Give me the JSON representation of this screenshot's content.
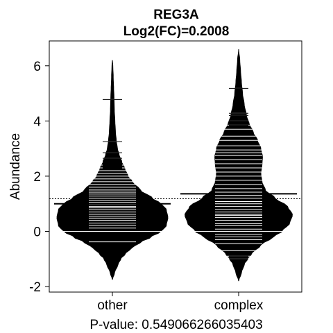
{
  "chart_data": {
    "type": "beanplot",
    "title": "REG3A",
    "subtitle": "Log2(FC)=0.2008",
    "xlabel": "P-value: 0.549066266035403",
    "ylabel": "Abundance",
    "categories": [
      "other",
      "complex"
    ],
    "ylim": [
      -2.2,
      6.9
    ],
    "yticks": [
      -2,
      0,
      2,
      4,
      6
    ],
    "overall_mean": 1.18,
    "grid": false,
    "legend": "none",
    "series": [
      {
        "name": "other",
        "mean": 1.0,
        "min": -1.75,
        "max": 6.2,
        "density": [
          [
            -1.75,
            0.0
          ],
          [
            -1.5,
            0.04
          ],
          [
            -1.2,
            0.1
          ],
          [
            -1.0,
            0.15
          ],
          [
            -0.8,
            0.24
          ],
          [
            -0.6,
            0.35
          ],
          [
            -0.4,
            0.5
          ],
          [
            -0.2,
            0.7
          ],
          [
            0.0,
            0.88
          ],
          [
            0.2,
            0.97
          ],
          [
            0.5,
            1.0
          ],
          [
            0.8,
            0.97
          ],
          [
            1.0,
            0.88
          ],
          [
            1.2,
            0.72
          ],
          [
            1.5,
            0.5
          ],
          [
            1.8,
            0.36
          ],
          [
            2.0,
            0.28
          ],
          [
            2.3,
            0.22
          ],
          [
            2.5,
            0.17
          ],
          [
            2.8,
            0.12
          ],
          [
            3.0,
            0.09
          ],
          [
            3.3,
            0.07
          ],
          [
            3.6,
            0.055
          ],
          [
            4.0,
            0.045
          ],
          [
            4.4,
            0.035
          ],
          [
            4.8,
            0.03
          ],
          [
            5.2,
            0.022
          ],
          [
            5.6,
            0.015
          ],
          [
            6.0,
            0.008
          ],
          [
            6.2,
            0.0
          ]
        ],
        "observations": [
          -0.38,
          0.0,
          0.0,
          0.0,
          0.0,
          0.12,
          0.22,
          0.3,
          0.4,
          0.48,
          0.55,
          0.62,
          0.7,
          0.78,
          0.85,
          0.9,
          0.98,
          1.05,
          1.12,
          1.2,
          1.28,
          1.35,
          1.42,
          1.5,
          1.6,
          1.7,
          1.8,
          1.9,
          2.0,
          2.1,
          2.2,
          2.3,
          2.4,
          2.55,
          2.65,
          2.85,
          3.25,
          4.78
        ]
      },
      {
        "name": "complex",
        "mean": 1.36,
        "min": -1.8,
        "max": 6.6,
        "density": [
          [
            -1.8,
            0.0
          ],
          [
            -1.5,
            0.05
          ],
          [
            -1.2,
            0.1
          ],
          [
            -1.0,
            0.16
          ],
          [
            -0.8,
            0.24
          ],
          [
            -0.5,
            0.4
          ],
          [
            -0.2,
            0.62
          ],
          [
            0.0,
            0.78
          ],
          [
            0.3,
            0.92
          ],
          [
            0.6,
            0.97
          ],
          [
            0.9,
            0.88
          ],
          [
            1.2,
            0.66
          ],
          [
            1.5,
            0.48
          ],
          [
            1.8,
            0.42
          ],
          [
            2.1,
            0.4
          ],
          [
            2.4,
            0.42
          ],
          [
            2.7,
            0.43
          ],
          [
            3.0,
            0.4
          ],
          [
            3.3,
            0.34
          ],
          [
            3.6,
            0.26
          ],
          [
            3.9,
            0.19
          ],
          [
            4.2,
            0.14
          ],
          [
            4.6,
            0.1
          ],
          [
            5.0,
            0.07
          ],
          [
            5.4,
            0.05
          ],
          [
            5.8,
            0.035
          ],
          [
            6.2,
            0.02
          ],
          [
            6.6,
            0.0
          ]
        ],
        "observations": [
          -1.0,
          -0.9,
          -0.7,
          -0.45,
          -0.3,
          -0.2,
          -0.1,
          0.0,
          0.0,
          0.0,
          0.0,
          0.08,
          0.2,
          0.28,
          0.4,
          0.5,
          0.58,
          0.62,
          0.7,
          0.8,
          0.9,
          1.0,
          1.08,
          1.2,
          1.3,
          1.42,
          1.55,
          1.7,
          1.85,
          2.0,
          2.15,
          2.3,
          2.45,
          2.6,
          2.75,
          2.85,
          2.95,
          3.1,
          3.3,
          3.45,
          3.7,
          3.85,
          4.0,
          4.2,
          4.28,
          5.18
        ]
      }
    ]
  }
}
